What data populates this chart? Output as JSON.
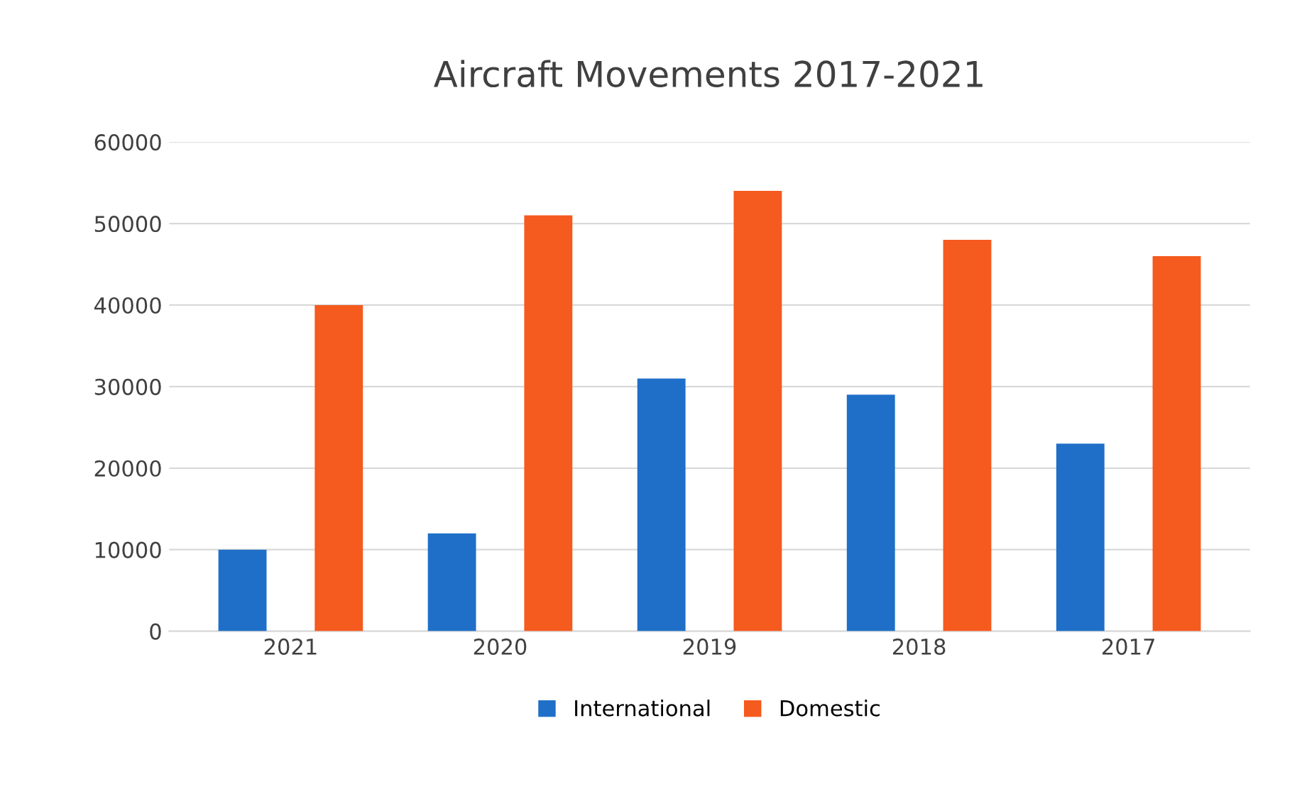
{
  "chart_data": {
    "type": "bar",
    "title": "Aircraft Movements 2017-2021",
    "categories": [
      "2021",
      "2020",
      "2019",
      "2018",
      "2017"
    ],
    "series": [
      {
        "name": "International",
        "color": "#1f6fc8",
        "values": [
          10000,
          12000,
          31000,
          29000,
          23000
        ]
      },
      {
        "name": "Domestic",
        "color": "#f55a1e",
        "values": [
          40000,
          51000,
          54000,
          48000,
          46000
        ]
      }
    ],
    "ylim": [
      0,
      60000
    ],
    "yticks": [
      0,
      10000,
      20000,
      30000,
      40000,
      50000,
      60000
    ],
    "grid": "y",
    "legend": "bottom"
  }
}
